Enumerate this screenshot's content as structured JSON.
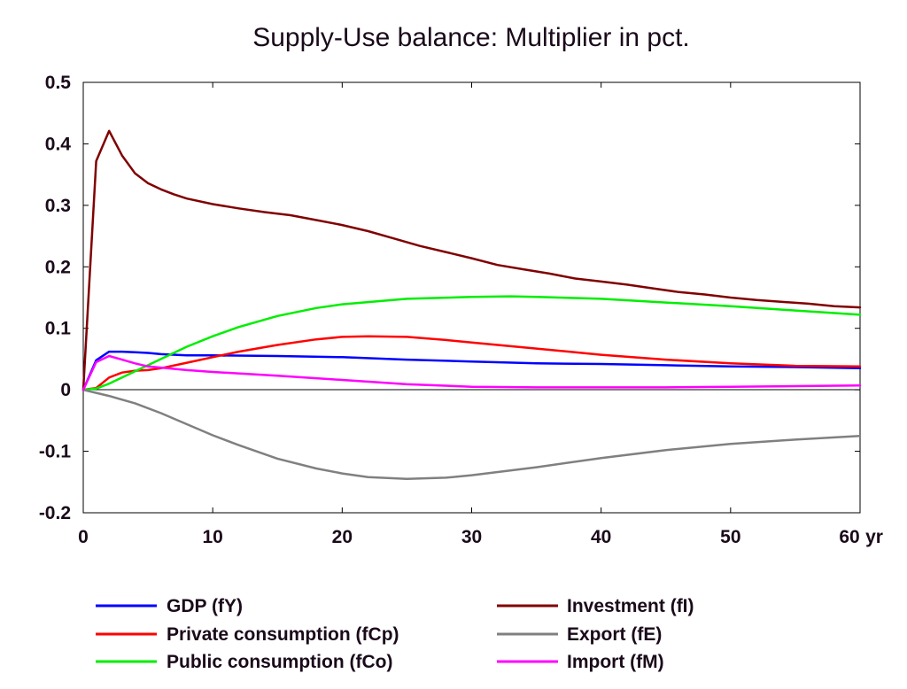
{
  "chart_data": {
    "type": "line",
    "title": "Supply-Use balance: Multiplier in pct.",
    "xlabel": "",
    "ylabel": "",
    "x_unit_label": "yr",
    "xlim": [
      0,
      60
    ],
    "ylim": [
      -0.2,
      0.5
    ],
    "x_ticks": [
      "0",
      "10",
      "20",
      "30",
      "40",
      "50",
      "60"
    ],
    "y_ticks": [
      "0.5",
      "0.4",
      "0.3",
      "0.2",
      "0.1",
      "0",
      "-0.1",
      "-0.2"
    ],
    "x_tick_values": [
      0,
      10,
      20,
      30,
      40,
      50,
      60
    ],
    "y_tick_values": [
      0.5,
      0.4,
      0.3,
      0.2,
      0.1,
      0,
      -0.1,
      -0.2
    ],
    "grid": false,
    "zero_line": true,
    "legend_position": "bottom",
    "series": [
      {
        "name": "GDP (fY)",
        "color": "#0000ff",
        "points": [
          [
            0,
            0
          ],
          [
            1,
            0.048
          ],
          [
            2,
            0.062
          ],
          [
            3,
            0.062
          ],
          [
            4,
            0.061
          ],
          [
            5,
            0.06
          ],
          [
            6,
            0.058
          ],
          [
            8,
            0.056
          ],
          [
            10,
            0.056
          ],
          [
            15,
            0.055
          ],
          [
            20,
            0.053
          ],
          [
            25,
            0.049
          ],
          [
            30,
            0.046
          ],
          [
            35,
            0.043
          ],
          [
            40,
            0.042
          ],
          [
            45,
            0.04
          ],
          [
            50,
            0.038
          ],
          [
            55,
            0.037
          ],
          [
            60,
            0.035
          ]
        ]
      },
      {
        "name": "Private consumption (fCp)",
        "color": "#ff0000",
        "points": [
          [
            0,
            0
          ],
          [
            1,
            0.003
          ],
          [
            2,
            0.02
          ],
          [
            3,
            0.028
          ],
          [
            4,
            0.031
          ],
          [
            5,
            0.032
          ],
          [
            6,
            0.035
          ],
          [
            8,
            0.044
          ],
          [
            10,
            0.053
          ],
          [
            12,
            0.062
          ],
          [
            15,
            0.073
          ],
          [
            18,
            0.082
          ],
          [
            20,
            0.086
          ],
          [
            22,
            0.087
          ],
          [
            25,
            0.086
          ],
          [
            28,
            0.081
          ],
          [
            30,
            0.077
          ],
          [
            35,
            0.067
          ],
          [
            40,
            0.057
          ],
          [
            45,
            0.049
          ],
          [
            50,
            0.043
          ],
          [
            55,
            0.039
          ],
          [
            60,
            0.038
          ]
        ]
      },
      {
        "name": "Public consumption (fCo)",
        "color": "#00ee00",
        "points": [
          [
            0,
            0
          ],
          [
            1,
            0.002
          ],
          [
            2,
            0.01
          ],
          [
            3,
            0.02
          ],
          [
            4,
            0.03
          ],
          [
            5,
            0.04
          ],
          [
            6,
            0.05
          ],
          [
            8,
            0.07
          ],
          [
            10,
            0.087
          ],
          [
            12,
            0.102
          ],
          [
            15,
            0.12
          ],
          [
            18,
            0.133
          ],
          [
            20,
            0.139
          ],
          [
            25,
            0.148
          ],
          [
            30,
            0.151
          ],
          [
            33,
            0.152
          ],
          [
            35,
            0.151
          ],
          [
            40,
            0.148
          ],
          [
            45,
            0.142
          ],
          [
            50,
            0.136
          ],
          [
            55,
            0.129
          ],
          [
            60,
            0.122
          ]
        ]
      },
      {
        "name": "Investment (fI)",
        "color": "#800000",
        "points": [
          [
            0,
            0
          ],
          [
            1,
            0.372
          ],
          [
            2,
            0.421
          ],
          [
            3,
            0.381
          ],
          [
            4,
            0.352
          ],
          [
            5,
            0.336
          ],
          [
            6,
            0.326
          ],
          [
            7,
            0.318
          ],
          [
            8,
            0.311
          ],
          [
            10,
            0.302
          ],
          [
            12,
            0.295
          ],
          [
            14,
            0.289
          ],
          [
            16,
            0.284
          ],
          [
            18,
            0.276
          ],
          [
            20,
            0.268
          ],
          [
            22,
            0.258
          ],
          [
            24,
            0.246
          ],
          [
            26,
            0.234
          ],
          [
            28,
            0.224
          ],
          [
            30,
            0.214
          ],
          [
            32,
            0.203
          ],
          [
            34,
            0.196
          ],
          [
            36,
            0.189
          ],
          [
            38,
            0.181
          ],
          [
            40,
            0.176
          ],
          [
            42,
            0.171
          ],
          [
            44,
            0.165
          ],
          [
            46,
            0.159
          ],
          [
            48,
            0.155
          ],
          [
            50,
            0.15
          ],
          [
            52,
            0.146
          ],
          [
            54,
            0.143
          ],
          [
            56,
            0.14
          ],
          [
            58,
            0.136
          ],
          [
            60,
            0.134
          ]
        ]
      },
      {
        "name": "Export (fE)",
        "color": "#808080",
        "points": [
          [
            0,
            0
          ],
          [
            2,
            -0.01
          ],
          [
            4,
            -0.022
          ],
          [
            6,
            -0.038
          ],
          [
            8,
            -0.056
          ],
          [
            10,
            -0.074
          ],
          [
            12,
            -0.09
          ],
          [
            15,
            -0.112
          ],
          [
            18,
            -0.128
          ],
          [
            20,
            -0.136
          ],
          [
            22,
            -0.142
          ],
          [
            25,
            -0.145
          ],
          [
            28,
            -0.143
          ],
          [
            30,
            -0.139
          ],
          [
            35,
            -0.126
          ],
          [
            40,
            -0.111
          ],
          [
            45,
            -0.098
          ],
          [
            50,
            -0.088
          ],
          [
            55,
            -0.081
          ],
          [
            60,
            -0.075
          ]
        ]
      },
      {
        "name": "Import (fM)",
        "color": "#ff00ff",
        "points": [
          [
            0,
            0
          ],
          [
            1,
            0.045
          ],
          [
            2,
            0.055
          ],
          [
            3,
            0.049
          ],
          [
            4,
            0.043
          ],
          [
            5,
            0.038
          ],
          [
            6,
            0.036
          ],
          [
            8,
            0.032
          ],
          [
            10,
            0.029
          ],
          [
            15,
            0.023
          ],
          [
            20,
            0.016
          ],
          [
            25,
            0.009
          ],
          [
            30,
            0.005
          ],
          [
            35,
            0.004
          ],
          [
            40,
            0.004
          ],
          [
            45,
            0.004
          ],
          [
            50,
            0.005
          ],
          [
            55,
            0.006
          ],
          [
            60,
            0.007
          ]
        ]
      }
    ]
  }
}
